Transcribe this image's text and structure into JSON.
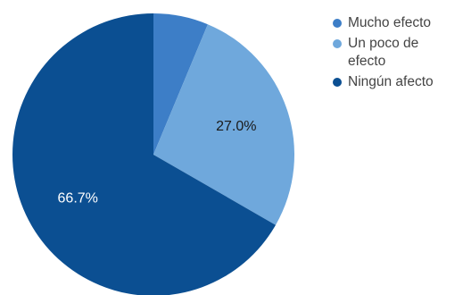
{
  "chart_data": {
    "type": "pie",
    "title": "",
    "categories": [
      "Mucho efecto",
      "Un poco de efecto",
      "Ningún afecto"
    ],
    "values": [
      6.3,
      27.0,
      66.7
    ],
    "data_labels": [
      "",
      "27.0%",
      "66.7%"
    ],
    "colors": [
      "#3d7ec7",
      "#6fa8dc",
      "#0b4f92"
    ],
    "label_colors": [
      "#ffffff",
      "#1a1a1a",
      "#ffffff"
    ],
    "start_angle_deg": 0,
    "direction": "clockwise",
    "legend_position": "right"
  },
  "legend": {
    "items": [
      {
        "label": "Mucho efecto",
        "color": "#3d7ec7"
      },
      {
        "label": "Un poco de efecto",
        "color": "#6fa8dc"
      },
      {
        "label": "Ningún afecto",
        "color": "#0b4f92"
      }
    ]
  }
}
